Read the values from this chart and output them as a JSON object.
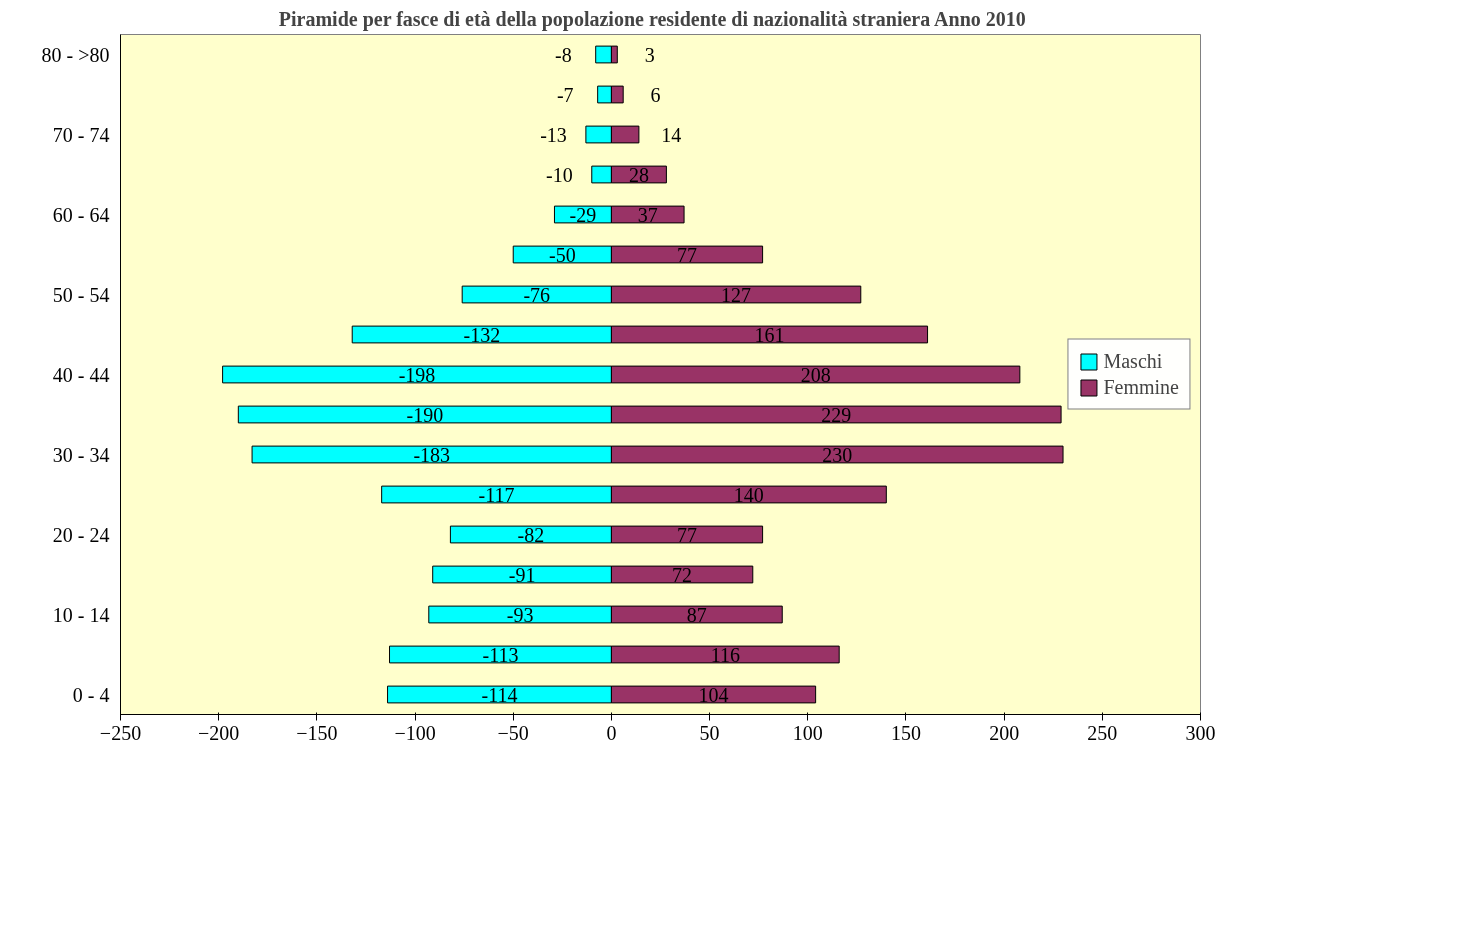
{
  "chart_data": {
    "type": "bar",
    "orientation": "horizontal",
    "title": "Piramide per fasce di età della popolazione residente di nazionalità straniera    Anno 2010",
    "categories": [
      "80 - >80",
      null,
      "70 - 74",
      null,
      "60 - 64",
      null,
      "50 - 54",
      null,
      "40 - 44",
      null,
      "30 - 34",
      null,
      "20 - 24",
      null,
      "10 - 14",
      null,
      "0 - 4"
    ],
    "series": [
      {
        "name": "Maschi",
        "color": "#00ffff",
        "values": [
          -8,
          -7,
          -13,
          -10,
          -29,
          -50,
          -76,
          -132,
          -198,
          -190,
          -183,
          -117,
          -82,
          -91,
          -93,
          -113,
          -114
        ]
      },
      {
        "name": "Femmine",
        "color": "#993366",
        "values": [
          3,
          6,
          14,
          28,
          37,
          77,
          127,
          161,
          208,
          229,
          230,
          140,
          77,
          72,
          87,
          116,
          104
        ]
      }
    ],
    "xlim": [
      -250,
      300
    ],
    "xticks": [
      -250,
      -200,
      -150,
      -100,
      -50,
      0,
      50,
      100,
      150,
      200,
      250,
      300
    ],
    "data_labels": true,
    "stacked": true,
    "legend": "right",
    "grid": false
  }
}
